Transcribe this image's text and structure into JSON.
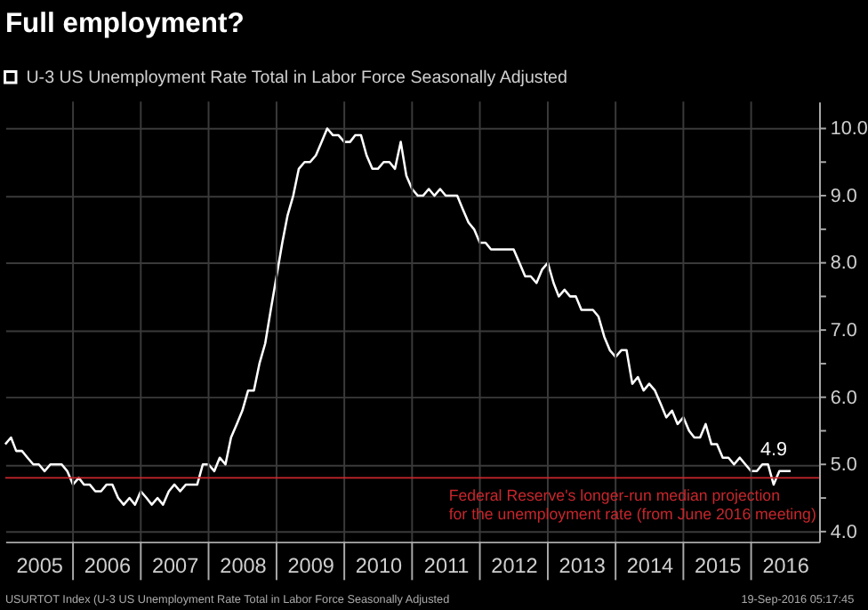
{
  "chart_data": {
    "type": "line",
    "title": "Full employment?",
    "x": [
      "2005-01",
      "2005-02",
      "2005-03",
      "2005-04",
      "2005-05",
      "2005-06",
      "2005-07",
      "2005-08",
      "2005-09",
      "2005-10",
      "2005-11",
      "2005-12",
      "2006-01",
      "2006-02",
      "2006-03",
      "2006-04",
      "2006-05",
      "2006-06",
      "2006-07",
      "2006-08",
      "2006-09",
      "2006-10",
      "2006-11",
      "2006-12",
      "2007-01",
      "2007-02",
      "2007-03",
      "2007-04",
      "2007-05",
      "2007-06",
      "2007-07",
      "2007-08",
      "2007-09",
      "2007-10",
      "2007-11",
      "2007-12",
      "2008-01",
      "2008-02",
      "2008-03",
      "2008-04",
      "2008-05",
      "2008-06",
      "2008-07",
      "2008-08",
      "2008-09",
      "2008-10",
      "2008-11",
      "2008-12",
      "2009-01",
      "2009-02",
      "2009-03",
      "2009-04",
      "2009-05",
      "2009-06",
      "2009-07",
      "2009-08",
      "2009-09",
      "2009-10",
      "2009-11",
      "2009-12",
      "2010-01",
      "2010-02",
      "2010-03",
      "2010-04",
      "2010-05",
      "2010-06",
      "2010-07",
      "2010-08",
      "2010-09",
      "2010-10",
      "2010-11",
      "2010-12",
      "2011-01",
      "2011-02",
      "2011-03",
      "2011-04",
      "2011-05",
      "2011-06",
      "2011-07",
      "2011-08",
      "2011-09",
      "2011-10",
      "2011-11",
      "2011-12",
      "2012-01",
      "2012-02",
      "2012-03",
      "2012-04",
      "2012-05",
      "2012-06",
      "2012-07",
      "2012-08",
      "2012-09",
      "2012-10",
      "2012-11",
      "2012-12",
      "2013-01",
      "2013-02",
      "2013-03",
      "2013-04",
      "2013-05",
      "2013-06",
      "2013-07",
      "2013-08",
      "2013-09",
      "2013-10",
      "2013-11",
      "2013-12",
      "2014-01",
      "2014-02",
      "2014-03",
      "2014-04",
      "2014-05",
      "2014-06",
      "2014-07",
      "2014-08",
      "2014-09",
      "2014-10",
      "2014-11",
      "2014-12",
      "2015-01",
      "2015-02",
      "2015-03",
      "2015-04",
      "2015-05",
      "2015-06",
      "2015-07",
      "2015-08",
      "2015-09",
      "2015-10",
      "2015-11",
      "2015-12",
      "2016-01",
      "2016-02",
      "2016-03",
      "2016-04",
      "2016-05",
      "2016-06",
      "2016-07",
      "2016-08"
    ],
    "series": [
      {
        "name": "U-3 US Unemployment Rate Total in Labor Force Seasonally Adjusted",
        "color": "#ffffff",
        "values": [
          5.3,
          5.4,
          5.2,
          5.2,
          5.1,
          5.0,
          5.0,
          4.9,
          5.0,
          5.0,
          5.0,
          4.9,
          4.7,
          4.8,
          4.7,
          4.7,
          4.6,
          4.6,
          4.7,
          4.7,
          4.5,
          4.4,
          4.5,
          4.4,
          4.6,
          4.5,
          4.4,
          4.5,
          4.4,
          4.6,
          4.7,
          4.6,
          4.7,
          4.7,
          4.7,
          5.0,
          5.0,
          4.9,
          5.1,
          5.0,
          5.4,
          5.6,
          5.8,
          6.1,
          6.1,
          6.5,
          6.8,
          7.3,
          7.8,
          8.3,
          8.7,
          9.0,
          9.4,
          9.5,
          9.5,
          9.6,
          9.8,
          10.0,
          9.9,
          9.9,
          9.8,
          9.8,
          9.9,
          9.9,
          9.6,
          9.4,
          9.4,
          9.5,
          9.5,
          9.4,
          9.8,
          9.3,
          9.1,
          9.0,
          9.0,
          9.1,
          9.0,
          9.1,
          9.0,
          9.0,
          9.0,
          8.8,
          8.6,
          8.5,
          8.3,
          8.3,
          8.2,
          8.2,
          8.2,
          8.2,
          8.2,
          8.0,
          7.8,
          7.8,
          7.7,
          7.9,
          8.0,
          7.7,
          7.5,
          7.6,
          7.5,
          7.5,
          7.3,
          7.3,
          7.3,
          7.2,
          6.9,
          6.7,
          6.6,
          6.7,
          6.7,
          6.2,
          6.3,
          6.1,
          6.2,
          6.1,
          5.9,
          5.7,
          5.8,
          5.6,
          5.7,
          5.5,
          5.4,
          5.4,
          5.6,
          5.3,
          5.3,
          5.1,
          5.1,
          5.0,
          5.1,
          5.0,
          4.9,
          4.9,
          5.0,
          5.0,
          4.7,
          4.9,
          4.9,
          4.9
        ]
      }
    ],
    "xlim": [
      "2005-01",
      "2017-01"
    ],
    "xticks": [
      {
        "value": "2005-07",
        "label": "2005"
      },
      {
        "value": "2006-01",
        "label": null
      },
      {
        "value": "2006-07",
        "label": "2006"
      },
      {
        "value": "2007-01",
        "label": null
      },
      {
        "value": "2007-07",
        "label": "2007"
      },
      {
        "value": "2008-01",
        "label": null
      },
      {
        "value": "2008-07",
        "label": "2008"
      },
      {
        "value": "2009-01",
        "label": null
      },
      {
        "value": "2009-07",
        "label": "2009"
      },
      {
        "value": "2010-01",
        "label": null
      },
      {
        "value": "2010-07",
        "label": "2010"
      },
      {
        "value": "2011-01",
        "label": null
      },
      {
        "value": "2011-07",
        "label": "2011"
      },
      {
        "value": "2012-01",
        "label": null
      },
      {
        "value": "2012-07",
        "label": "2012"
      },
      {
        "value": "2013-01",
        "label": null
      },
      {
        "value": "2013-07",
        "label": "2013"
      },
      {
        "value": "2014-01",
        "label": null
      },
      {
        "value": "2014-07",
        "label": "2014"
      },
      {
        "value": "2015-01",
        "label": null
      },
      {
        "value": "2015-07",
        "label": "2015"
      },
      {
        "value": "2016-01",
        "label": null
      },
      {
        "value": "2016-07",
        "label": "2016"
      }
    ],
    "ylim": [
      3.85,
      10.4
    ],
    "yticks": [
      {
        "value": 4,
        "label": "4.0"
      },
      {
        "value": 4.5,
        "label": null
      },
      {
        "value": 5,
        "label": "5.0"
      },
      {
        "value": 5.5,
        "label": null
      },
      {
        "value": 6,
        "label": "6.0"
      },
      {
        "value": 6.5,
        "label": null
      },
      {
        "value": 7,
        "label": "7.0"
      },
      {
        "value": 7.5,
        "label": null
      },
      {
        "value": 8,
        "label": "8.0"
      },
      {
        "value": 8.5,
        "label": null
      },
      {
        "value": 9,
        "label": "9.0"
      },
      {
        "value": 9.5,
        "label": null
      },
      {
        "value": 10,
        "label": "10.0"
      }
    ],
    "ref_lines": [
      {
        "axis": "y",
        "value": 4.8,
        "label": "Federal Reserve's longer-run median projection\nfor the unemployment rate (from June 2016 meeting)",
        "color": "#c8262c",
        "line_style": "solid"
      }
    ],
    "annotations": [
      {
        "text": "4.9",
        "x": "2016-08",
        "y": 4.9
      },
      "USURTOT Index (U-3 US Unemployment Rate Total in Labor Force Seasonally Adjusted",
      "19-Sep-2016 05:17:45"
    ],
    "grid": true,
    "legend": "top left",
    "marker": "none",
    "line_style": "solid"
  }
}
